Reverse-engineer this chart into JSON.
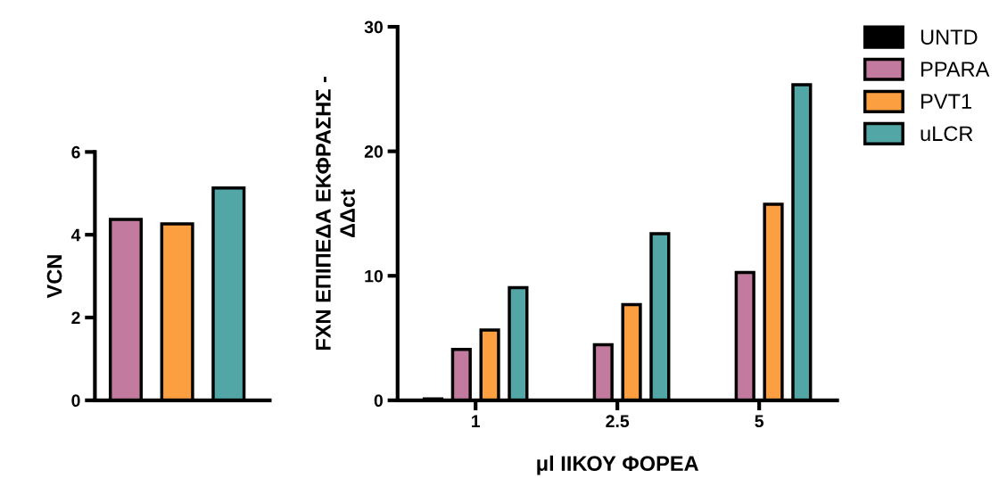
{
  "chart_data": [
    {
      "type": "bar",
      "ylabel": "VCN",
      "categories": [
        null,
        null,
        null
      ],
      "values": [
        4.37,
        4.26,
        5.13
      ],
      "colors": [
        "#c27b9e",
        "#fb9f40",
        "#52a7a6"
      ],
      "ylim": [
        0,
        6
      ],
      "yticks": [
        0,
        2,
        4,
        6
      ]
    },
    {
      "type": "bar",
      "ylabel": "FXN ΕΠΙΠΕΔΑ ΕΚΦΡΑΣΗΣ -\nΔΔct",
      "xlabel": "μl ΙΙΚΟΥ ΦΟΡΕΑ",
      "categories": [
        "1",
        "2.5",
        "5"
      ],
      "ylim": [
        0,
        30
      ],
      "yticks": [
        0,
        10,
        20,
        30
      ],
      "legend": "top right",
      "series": [
        {
          "name": "UNTD",
          "color": "#000000",
          "values": [
            0.12,
            null,
            null
          ]
        },
        {
          "name": "PPARA",
          "color": "#c27b9e",
          "values": [
            4.09,
            4.46,
            10.27
          ]
        },
        {
          "name": "PVT1",
          "color": "#fb9f40",
          "values": [
            5.65,
            7.69,
            15.75
          ]
        },
        {
          "name": "uLCR",
          "color": "#52a7a6",
          "values": [
            9.05,
            13.39,
            25.34
          ]
        }
      ]
    }
  ]
}
